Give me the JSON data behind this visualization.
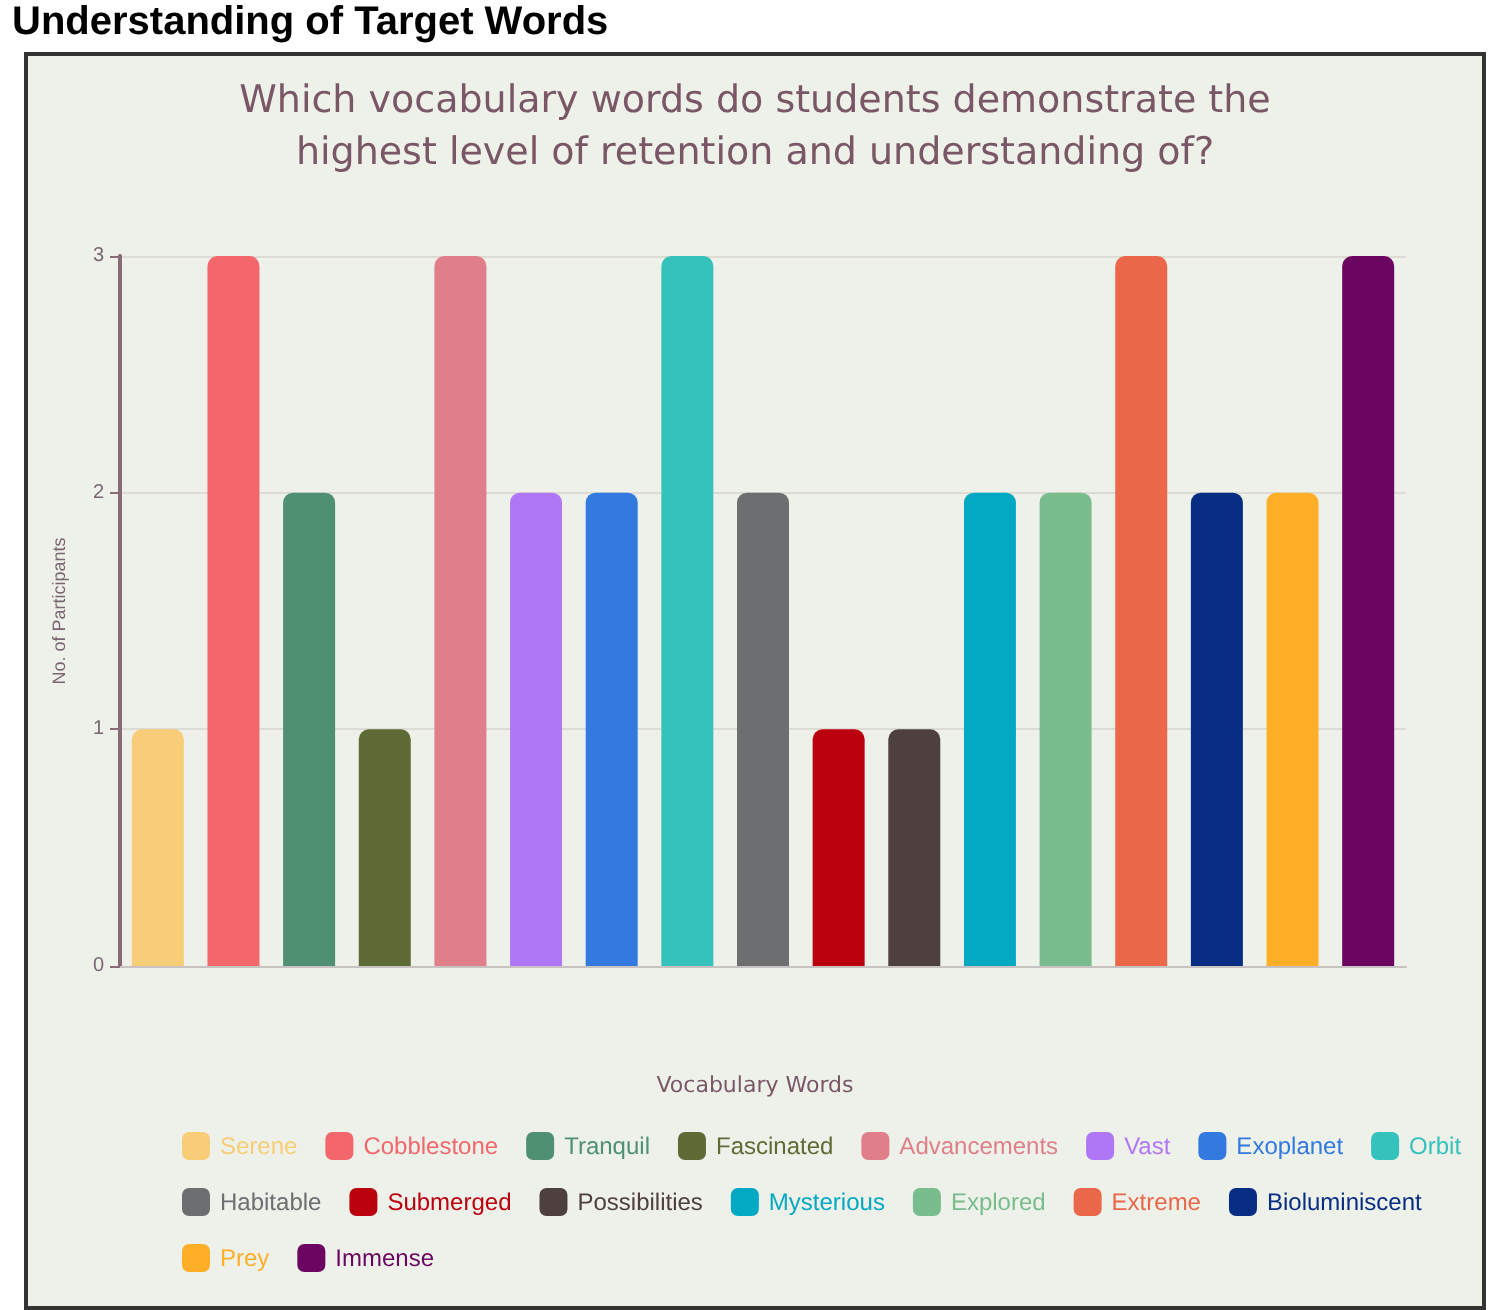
{
  "chart_data": {
    "type": "bar",
    "title": "Which vocabulary words do students demonstrate the\nhighest level of retention and understanding of?",
    "ylabel": "No. of Participants",
    "legend_title": "Vocabulary Words",
    "annotations": [
      "Understanding of Target Words"
    ],
    "categories": [
      null,
      null,
      null,
      null,
      null,
      null,
      null,
      null,
      null,
      null,
      null,
      null,
      null,
      null,
      null,
      null,
      null
    ],
    "series": [
      {
        "name": "Serene",
        "color": "#f8cd78",
        "values": [
          1,
          null,
          null,
          null,
          null,
          null,
          null,
          null,
          null,
          null,
          null,
          null,
          null,
          null,
          null,
          null,
          null
        ]
      },
      {
        "name": "Cobblestone",
        "color": "#f2666c",
        "values": [
          null,
          3,
          null,
          null,
          null,
          null,
          null,
          null,
          null,
          null,
          null,
          null,
          null,
          null,
          null,
          null,
          null
        ]
      },
      {
        "name": "Tranquil",
        "color": "#4f8f72",
        "values": [
          null,
          null,
          2,
          null,
          null,
          null,
          null,
          null,
          null,
          null,
          null,
          null,
          null,
          null,
          null,
          null,
          null
        ]
      },
      {
        "name": "Fascinated",
        "color": "#5e6b36",
        "values": [
          null,
          null,
          null,
          1,
          null,
          null,
          null,
          null,
          null,
          null,
          null,
          null,
          null,
          null,
          null,
          null,
          null
        ]
      },
      {
        "name": "Advancements",
        "color": "#e07f8a",
        "values": [
          null,
          null,
          null,
          null,
          3,
          null,
          null,
          null,
          null,
          null,
          null,
          null,
          null,
          null,
          null,
          null,
          null
        ]
      },
      {
        "name": "Vast",
        "color": "#af77f5",
        "values": [
          null,
          null,
          null,
          null,
          null,
          2,
          null,
          null,
          null,
          null,
          null,
          null,
          null,
          null,
          null,
          null,
          null
        ]
      },
      {
        "name": "Exoplanet",
        "color": "#3279e0",
        "values": [
          null,
          null,
          null,
          null,
          null,
          null,
          2,
          null,
          null,
          null,
          null,
          null,
          null,
          null,
          null,
          null,
          null
        ]
      },
      {
        "name": "Orbit",
        "color": "#35c1bc",
        "values": [
          null,
          null,
          null,
          null,
          null,
          null,
          null,
          3,
          null,
          null,
          null,
          null,
          null,
          null,
          null,
          null,
          null
        ]
      },
      {
        "name": "Habitable",
        "color": "#6d6e70",
        "values": [
          null,
          null,
          null,
          null,
          null,
          null,
          null,
          null,
          2,
          null,
          null,
          null,
          null,
          null,
          null,
          null,
          null
        ]
      },
      {
        "name": "Submerged",
        "color": "#bb000e",
        "values": [
          null,
          null,
          null,
          null,
          null,
          null,
          null,
          null,
          null,
          1,
          null,
          null,
          null,
          null,
          null,
          null,
          null
        ]
      },
      {
        "name": "Possibilities",
        "color": "#4f4040",
        "values": [
          null,
          null,
          null,
          null,
          null,
          null,
          null,
          null,
          null,
          null,
          1,
          null,
          null,
          null,
          null,
          null,
          null
        ]
      },
      {
        "name": "Mysterious",
        "color": "#03a9c3",
        "values": [
          null,
          null,
          null,
          null,
          null,
          null,
          null,
          null,
          null,
          null,
          null,
          2,
          null,
          null,
          null,
          null,
          null
        ]
      },
      {
        "name": "Explored",
        "color": "#79bd8e",
        "values": [
          null,
          null,
          null,
          null,
          null,
          null,
          null,
          null,
          null,
          null,
          null,
          null,
          2,
          null,
          null,
          null,
          null
        ]
      },
      {
        "name": "Extreme",
        "color": "#ea6849",
        "values": [
          null,
          null,
          null,
          null,
          null,
          null,
          null,
          null,
          null,
          null,
          null,
          null,
          null,
          3,
          null,
          null,
          null
        ]
      },
      {
        "name": "Bioluminiscent",
        "color": "#082e83",
        "values": [
          null,
          null,
          null,
          null,
          null,
          null,
          null,
          null,
          null,
          null,
          null,
          null,
          null,
          null,
          2,
          null,
          null
        ]
      },
      {
        "name": "Prey",
        "color": "#feaf27",
        "values": [
          null,
          null,
          null,
          null,
          null,
          null,
          null,
          null,
          null,
          null,
          null,
          null,
          null,
          null,
          null,
          2,
          null
        ]
      },
      {
        "name": "Immense",
        "color": "#6c0562",
        "values": [
          null,
          null,
          null,
          null,
          null,
          null,
          null,
          null,
          null,
          null,
          null,
          null,
          null,
          null,
          null,
          null,
          3
        ]
      }
    ],
    "ylim": [
      0,
      3
    ],
    "yticks": [
      0,
      1,
      2,
      3
    ],
    "grid": "y",
    "legend": "bottom"
  }
}
